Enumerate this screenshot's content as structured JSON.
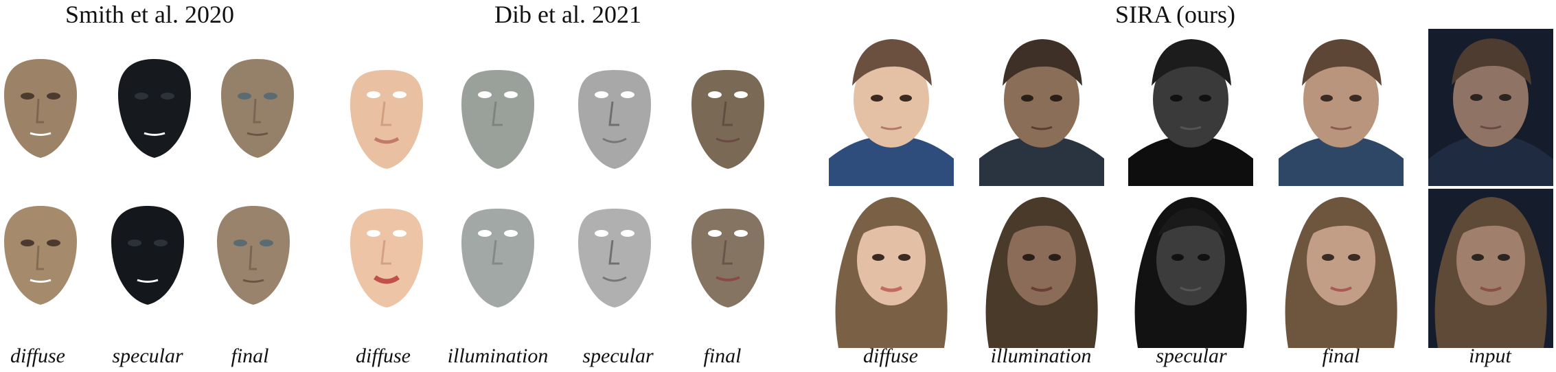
{
  "headings": {
    "smith": "Smith et al. 2020",
    "dib": "Dib et al. 2021",
    "sira": "SIRA (ours)"
  },
  "labels": {
    "smith": [
      "diffuse",
      "specular",
      "final"
    ],
    "dib": [
      "diffuse",
      "illumination",
      "specular",
      "final"
    ],
    "sira": [
      "diffuse",
      "illumination",
      "specular",
      "final",
      "input"
    ]
  },
  "colors": {
    "smith": [
      "#9c8266",
      "#161a1e",
      "#95806a"
    ],
    "dib": [
      "#e9c1a2",
      "#9aa09a",
      "#a8a8a8",
      "#7a6a55"
    ],
    "sira_skin": [
      "#e4c0a4",
      "#8b6e57",
      "#3a3a3a",
      "#b8957c",
      "#8f7465"
    ],
    "sira_bg": [
      "#ffffff",
      "#ffffff",
      "#ffffff",
      "#ffffff",
      "#151d2c"
    ]
  }
}
